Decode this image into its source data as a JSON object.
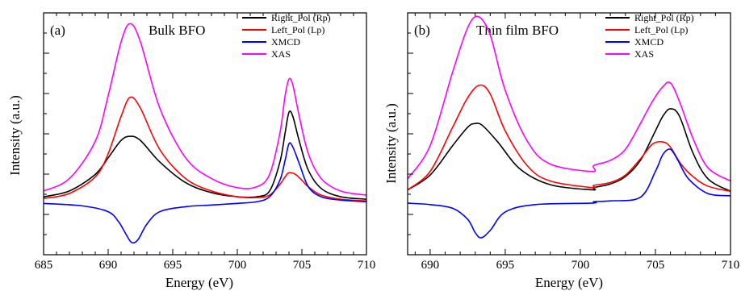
{
  "chart_data": [
    {
      "type": "line",
      "panel_label": "(a)",
      "title": "Bulk BFO",
      "xlabel": "Energy (eV)",
      "ylabel": "Intensity (a.u.)",
      "xlim": [
        685,
        710
      ],
      "ylim": [
        -0.62,
        2.3
      ],
      "xticks": [
        685,
        690,
        695,
        700,
        705,
        710
      ],
      "y_tick_labels_shown": false,
      "legend_position": "top-right",
      "series": [
        {
          "name": "Right_Pol (Rp)",
          "color": "#000000",
          "x": [
            685,
            687,
            689,
            690,
            691,
            691.7,
            692.5,
            694,
            696,
            698,
            700,
            701.5,
            702.5,
            703.3,
            703.7,
            704,
            704.3,
            704.8,
            705.5,
            706.5,
            708,
            710
          ],
          "y": [
            0.08,
            0.15,
            0.35,
            0.55,
            0.76,
            0.81,
            0.76,
            0.5,
            0.25,
            0.13,
            0.08,
            0.08,
            0.15,
            0.5,
            0.85,
            1.1,
            1.05,
            0.75,
            0.4,
            0.18,
            0.08,
            0.05
          ]
        },
        {
          "name": "Left_Pol (Lp)",
          "color": "#ff0000",
          "x": [
            685,
            687,
            689,
            690,
            691,
            691.7,
            692.5,
            694,
            696,
            698,
            700,
            701.5,
            702.5,
            703.3,
            703.7,
            704,
            704.5,
            705,
            705.5,
            706.5,
            708,
            710
          ],
          "y": [
            0.06,
            0.12,
            0.32,
            0.6,
            1.05,
            1.28,
            1.15,
            0.65,
            0.3,
            0.15,
            0.08,
            0.07,
            0.1,
            0.23,
            0.32,
            0.37,
            0.35,
            0.28,
            0.2,
            0.1,
            0.05,
            0.03
          ]
        },
        {
          "name": "XMCD",
          "color": "#0000ff",
          "x": [
            685,
            688,
            690,
            690.8,
            691.3,
            691.8,
            692.3,
            693,
            694,
            696,
            698,
            700,
            701.5,
            702.5,
            703.3,
            703.7,
            704,
            704.3,
            704.8,
            705.5,
            706.5,
            708,
            710
          ],
          "y": [
            0.0,
            -0.03,
            -0.1,
            -0.22,
            -0.35,
            -0.47,
            -0.44,
            -0.25,
            -0.1,
            -0.04,
            -0.02,
            0.0,
            0.02,
            0.08,
            0.28,
            0.52,
            0.72,
            0.68,
            0.48,
            0.2,
            0.08,
            0.04,
            0.02
          ]
        },
        {
          "name": "XAS",
          "color": "#ff00ff",
          "x": [
            685,
            687,
            689,
            690,
            691,
            691.7,
            692.5,
            694,
            696,
            698,
            700,
            701.5,
            702.5,
            703.3,
            703.7,
            704,
            704.3,
            704.8,
            705.5,
            706.5,
            708,
            710
          ],
          "y": [
            0.15,
            0.3,
            0.75,
            1.3,
            1.95,
            2.17,
            1.95,
            1.15,
            0.55,
            0.3,
            0.19,
            0.2,
            0.35,
            0.85,
            1.3,
            1.5,
            1.43,
            1.05,
            0.6,
            0.3,
            0.15,
            0.1
          ]
        }
      ]
    },
    {
      "type": "line",
      "panel_label": "(b)",
      "title": "Thin film BFO",
      "xlabel": "Energy (eV)",
      "ylabel": "Intensity (a.u.)",
      "xlim": [
        688.5,
        710
      ],
      "ylim": [
        -0.78,
        2.5
      ],
      "xticks": [
        690,
        695,
        700,
        705,
        710
      ],
      "y_tick_labels_shown": false,
      "legend_position": "top-right",
      "series": [
        {
          "name": "Right_Pol (Rp)",
          "color": "#000000",
          "x": [
            688.5,
            690,
            691.5,
            692.5,
            693,
            693.5,
            694.5,
            696,
            698,
            700.8,
            700.9,
            702,
            703,
            704,
            705,
            705.5,
            706,
            706.6,
            707.5,
            708.5,
            710
          ],
          "y": [
            0.1,
            0.3,
            0.7,
            0.95,
            1.0,
            0.97,
            0.75,
            0.38,
            0.17,
            0.1,
            0.13,
            0.18,
            0.28,
            0.5,
            0.9,
            1.1,
            1.2,
            1.1,
            0.6,
            0.25,
            0.08
          ]
        },
        {
          "name": "Left_Pol (Lp)",
          "color": "#ff0000",
          "x": [
            688.5,
            690,
            691.5,
            692.5,
            693.3,
            694,
            695,
            696.5,
            698,
            700.8,
            700.9,
            702,
            703,
            704,
            704.8,
            705.5,
            706,
            706.7,
            707.5,
            708.5,
            710
          ],
          "y": [
            0.1,
            0.35,
            0.95,
            1.35,
            1.52,
            1.4,
            0.9,
            0.42,
            0.22,
            0.13,
            0.16,
            0.2,
            0.3,
            0.52,
            0.72,
            0.75,
            0.68,
            0.45,
            0.28,
            0.15,
            0.08
          ]
        },
        {
          "name": "XMCD",
          "color": "#0000ff",
          "x": [
            688.5,
            690,
            691.5,
            692.5,
            693,
            693.4,
            694,
            695,
            697,
            700.8,
            700.9,
            702,
            704,
            705,
            705.5,
            706,
            706.5,
            707.2,
            708.5,
            710
          ],
          "y": [
            -0.08,
            -0.1,
            -0.15,
            -0.3,
            -0.48,
            -0.55,
            -0.45,
            -0.2,
            -0.1,
            -0.08,
            -0.06,
            -0.05,
            0.0,
            0.35,
            0.58,
            0.65,
            0.5,
            0.25,
            0.05,
            0.02
          ]
        },
        {
          "name": "XAS",
          "color": "#ff00ff",
          "x": [
            688.5,
            690,
            691.5,
            692.5,
            693.2,
            694,
            695,
            696.5,
            698,
            700.8,
            700.9,
            702,
            703,
            704,
            704.8,
            705.5,
            706,
            706.6,
            707.5,
            708.5,
            710
          ],
          "y": [
            0.25,
            0.7,
            1.7,
            2.3,
            2.45,
            2.2,
            1.45,
            0.75,
            0.45,
            0.35,
            0.43,
            0.5,
            0.65,
            1.0,
            1.3,
            1.5,
            1.55,
            1.3,
            0.8,
            0.4,
            0.22
          ]
        }
      ]
    }
  ]
}
